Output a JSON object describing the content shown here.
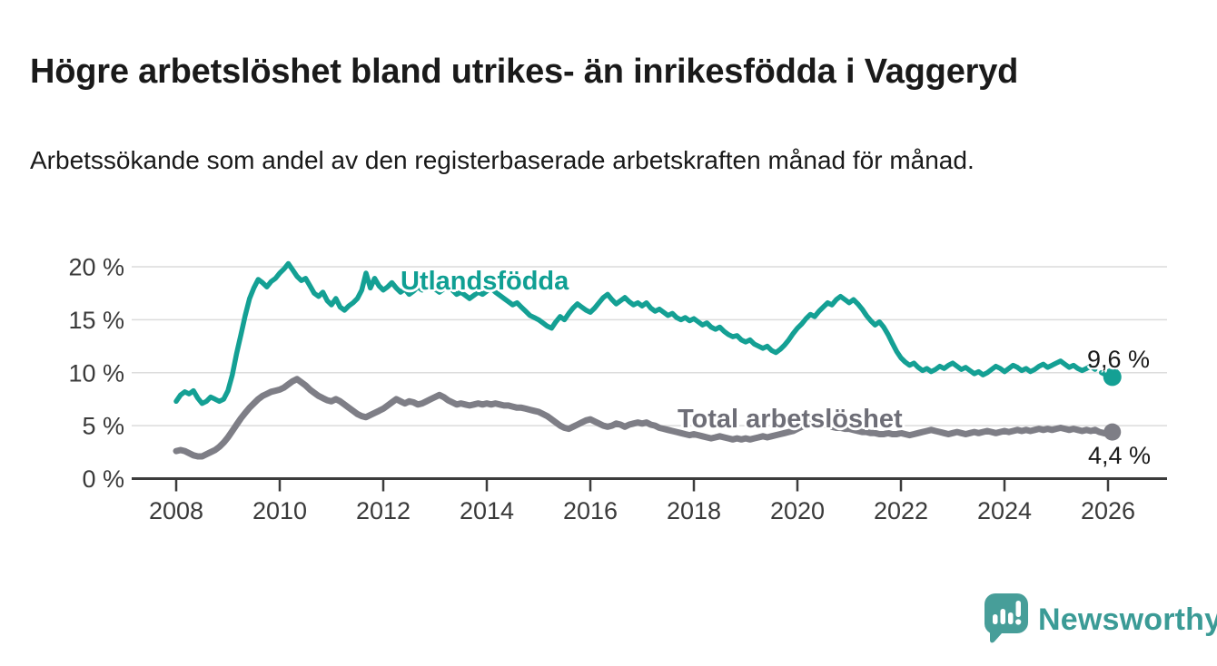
{
  "header": {
    "title": "Högre arbetslöshet bland utrikes- än inrikesfödda i Vaggeryd",
    "subtitle": "Arbetssökande som andel av den registerbaserade arbetskraften månad för månad."
  },
  "footer": {
    "brand": "Newsworthy"
  },
  "colors": {
    "foreign_born_line": "#14a094",
    "foreign_born_label": "#0f9f93",
    "total_line": "#7e7e86",
    "total_label": "#6e6e77",
    "grid": "#dcdcdc",
    "axis": "#3c3c3c",
    "tick_text": "#3a3a3a",
    "logo_teal": "#479e99",
    "logo_text_teal": "#3b9b96"
  },
  "chart_data": {
    "type": "line",
    "title": "Högre arbetslöshet bland utrikes- än inrikesfödda i Vaggeryd",
    "subtitle": "Arbetssökande som andel av den registerbaserade arbetskraften månad för månad.",
    "unit": "%",
    "x_start_year": 2008,
    "x_step": "month",
    "xlim": [
      2008,
      2026.17
    ],
    "ylim": [
      0,
      21.5
    ],
    "grid": true,
    "legend_position": "inline",
    "y_ticks": [
      {
        "value": 0,
        "label": "0 %"
      },
      {
        "value": 5,
        "label": "5 %"
      },
      {
        "value": 10,
        "label": "10 %"
      },
      {
        "value": 15,
        "label": "15 %"
      },
      {
        "value": 20,
        "label": "20 %"
      }
    ],
    "x_ticks": [
      "2008",
      "2010",
      "2012",
      "2014",
      "2016",
      "2018",
      "2020",
      "2022",
      "2024",
      "2026"
    ],
    "series": [
      {
        "name": "Utlandsfödda",
        "color": "#14a094",
        "end_label": "9,6 %",
        "end_value": 9.6,
        "dashed_from_index": 211,
        "line_width": 5.5,
        "end_dot_radius": 10,
        "values": [
          7.3,
          7.9,
          8.2,
          8.0,
          8.3,
          7.6,
          7.1,
          7.3,
          7.7,
          7.5,
          7.3,
          7.5,
          8.3,
          9.8,
          11.8,
          13.6,
          15.4,
          17.0,
          18.0,
          18.8,
          18.5,
          18.1,
          18.6,
          18.9,
          19.4,
          19.8,
          20.3,
          19.7,
          19.1,
          18.7,
          18.9,
          18.2,
          17.5,
          17.2,
          17.6,
          16.8,
          16.4,
          17.0,
          16.2,
          15.9,
          16.3,
          16.6,
          17.0,
          17.8,
          19.4,
          18.0,
          18.9,
          18.2,
          17.8,
          18.1,
          18.5,
          18.0,
          17.6,
          17.9,
          17.4,
          17.7,
          18.1,
          17.8,
          18.0,
          18.3,
          17.9,
          17.6,
          17.9,
          18.2,
          17.8,
          17.4,
          17.6,
          17.3,
          17.0,
          17.3,
          17.6,
          17.4,
          17.7,
          18.0,
          17.6,
          17.3,
          17.0,
          16.7,
          16.4,
          16.6,
          16.2,
          15.8,
          15.4,
          15.2,
          15.0,
          14.7,
          14.4,
          14.2,
          14.8,
          15.3,
          15.0,
          15.6,
          16.1,
          16.5,
          16.2,
          15.9,
          15.7,
          16.1,
          16.6,
          17.1,
          17.4,
          16.9,
          16.5,
          16.8,
          17.1,
          16.7,
          16.4,
          16.6,
          16.3,
          16.6,
          16.1,
          15.8,
          16.0,
          15.7,
          15.4,
          15.6,
          15.2,
          15.0,
          15.2,
          14.9,
          15.1,
          14.8,
          14.5,
          14.7,
          14.3,
          14.1,
          14.3,
          13.9,
          13.6,
          13.4,
          13.5,
          13.1,
          12.9,
          13.1,
          12.7,
          12.5,
          12.3,
          12.5,
          12.1,
          11.9,
          12.2,
          12.6,
          13.1,
          13.7,
          14.2,
          14.6,
          15.1,
          15.5,
          15.3,
          15.8,
          16.2,
          16.6,
          16.4,
          16.9,
          17.2,
          16.9,
          16.6,
          16.9,
          16.5,
          16.0,
          15.4,
          14.9,
          14.5,
          14.8,
          14.3,
          13.6,
          12.8,
          12.0,
          11.4,
          11.0,
          10.7,
          10.9,
          10.5,
          10.2,
          10.4,
          10.1,
          10.3,
          10.6,
          10.4,
          10.7,
          10.9,
          10.6,
          10.3,
          10.5,
          10.2,
          9.9,
          10.1,
          9.8,
          10.0,
          10.3,
          10.6,
          10.4,
          10.1,
          10.4,
          10.7,
          10.5,
          10.2,
          10.4,
          10.1,
          10.3,
          10.6,
          10.8,
          10.5,
          10.7,
          10.9,
          11.1,
          10.8,
          10.5,
          10.7,
          10.4,
          10.2,
          10.4,
          10.6,
          10.3,
          10.1,
          9.9,
          9.7,
          9.6
        ]
      },
      {
        "name": "Total arbetslöshet",
        "color": "#7e7e86",
        "end_label": "4,4 %",
        "end_value": 4.4,
        "dashed_from_index": -1,
        "line_width": 7,
        "end_dot_radius": 9.5,
        "values": [
          2.6,
          2.7,
          2.6,
          2.4,
          2.2,
          2.1,
          2.1,
          2.3,
          2.5,
          2.7,
          3.0,
          3.4,
          3.9,
          4.5,
          5.1,
          5.7,
          6.2,
          6.7,
          7.1,
          7.5,
          7.8,
          8.0,
          8.2,
          8.3,
          8.4,
          8.6,
          8.9,
          9.2,
          9.4,
          9.1,
          8.8,
          8.4,
          8.1,
          7.8,
          7.6,
          7.4,
          7.3,
          7.5,
          7.3,
          7.0,
          6.7,
          6.4,
          6.1,
          5.9,
          5.8,
          6.0,
          6.2,
          6.4,
          6.6,
          6.9,
          7.2,
          7.5,
          7.3,
          7.1,
          7.3,
          7.2,
          7.0,
          7.1,
          7.3,
          7.5,
          7.7,
          7.9,
          7.7,
          7.4,
          7.2,
          7.0,
          7.1,
          7.0,
          6.9,
          7.0,
          7.1,
          7.0,
          7.1,
          7.0,
          7.1,
          7.0,
          6.9,
          6.9,
          6.8,
          6.7,
          6.7,
          6.6,
          6.5,
          6.4,
          6.3,
          6.1,
          5.9,
          5.6,
          5.3,
          5.0,
          4.8,
          4.7,
          4.9,
          5.1,
          5.3,
          5.5,
          5.6,
          5.4,
          5.2,
          5.0,
          4.9,
          5.0,
          5.2,
          5.1,
          4.9,
          5.1,
          5.2,
          5.3,
          5.2,
          5.3,
          5.1,
          5.0,
          4.8,
          4.7,
          4.6,
          4.5,
          4.4,
          4.3,
          4.2,
          4.1,
          4.2,
          4.1,
          4.0,
          3.9,
          3.8,
          3.9,
          4.0,
          3.9,
          3.8,
          3.7,
          3.8,
          3.7,
          3.8,
          3.7,
          3.8,
          3.9,
          4.0,
          3.9,
          4.0,
          4.1,
          4.2,
          4.3,
          4.4,
          4.5,
          4.7,
          4.9,
          5.2,
          5.4,
          5.3,
          5.2,
          5.1,
          5.0,
          4.9,
          4.8,
          4.8,
          4.7,
          4.7,
          4.6,
          4.5,
          4.4,
          4.4,
          4.3,
          4.3,
          4.2,
          4.2,
          4.3,
          4.2,
          4.2,
          4.3,
          4.2,
          4.1,
          4.2,
          4.3,
          4.4,
          4.5,
          4.6,
          4.5,
          4.4,
          4.3,
          4.2,
          4.3,
          4.4,
          4.3,
          4.2,
          4.3,
          4.4,
          4.3,
          4.4,
          4.5,
          4.4,
          4.3,
          4.4,
          4.5,
          4.4,
          4.5,
          4.6,
          4.5,
          4.6,
          4.5,
          4.6,
          4.7,
          4.6,
          4.7,
          4.6,
          4.7,
          4.8,
          4.7,
          4.6,
          4.7,
          4.6,
          4.5,
          4.6,
          4.5,
          4.6,
          4.4,
          4.3,
          4.2,
          4.4
        ]
      }
    ]
  }
}
